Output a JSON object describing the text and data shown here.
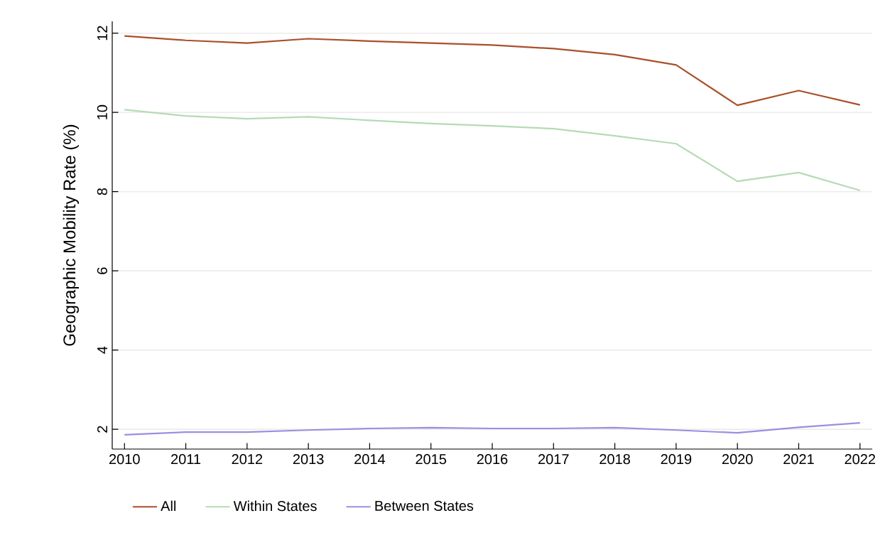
{
  "chart_data": {
    "type": "line",
    "ylabel": "Geographic Mobility Rate (%)",
    "x": [
      2010,
      2011,
      2012,
      2013,
      2014,
      2015,
      2016,
      2017,
      2018,
      2019,
      2020,
      2021,
      2022
    ],
    "series": [
      {
        "name": "All",
        "color": "#a9502a",
        "values": [
          11.93,
          11.82,
          11.75,
          11.86,
          11.8,
          11.75,
          11.7,
          11.61,
          11.46,
          11.2,
          10.18,
          10.55,
          10.19
        ]
      },
      {
        "name": "Within States",
        "color": "#b5dbb5",
        "values": [
          10.07,
          9.91,
          9.84,
          9.89,
          9.8,
          9.72,
          9.66,
          9.59,
          9.41,
          9.21,
          8.26,
          8.48,
          8.03
        ]
      },
      {
        "name": "Between States",
        "color": "#9a8fe0",
        "values": [
          1.86,
          1.93,
          1.93,
          1.98,
          2.02,
          2.04,
          2.02,
          2.02,
          2.04,
          1.98,
          1.91,
          2.05,
          2.16
        ]
      }
    ],
    "xlim": [
      2009.8,
      2022.2
    ],
    "ylim": [
      1.5,
      12.3
    ],
    "xticks": [
      2010,
      2011,
      2012,
      2013,
      2014,
      2015,
      2016,
      2017,
      2018,
      2019,
      2020,
      2021,
      2022
    ],
    "yticks": [
      2,
      4,
      6,
      8,
      10,
      12
    ],
    "grid": "y",
    "legend": "bottom",
    "marker": "none",
    "line_style": "solid"
  }
}
